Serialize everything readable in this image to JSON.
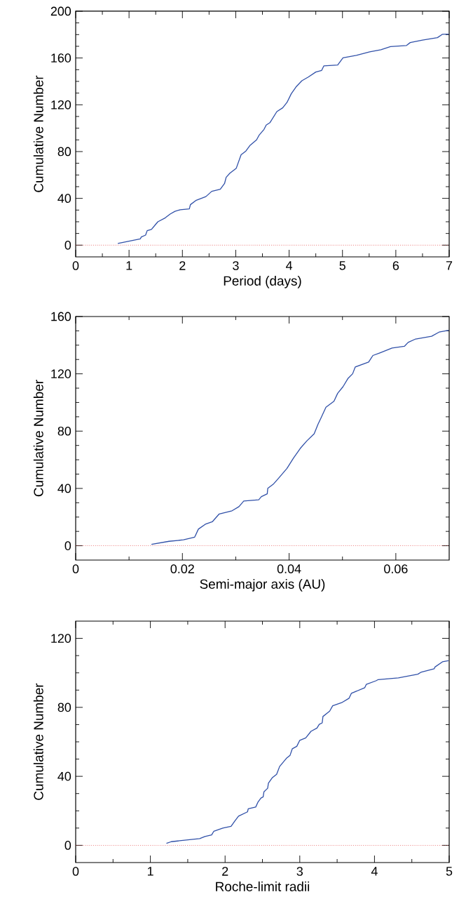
{
  "chart_data": [
    {
      "type": "line",
      "xlabel": "Period (days)",
      "ylabel": "Cumulative Number",
      "xlim": [
        0,
        7
      ],
      "ylim": [
        -10,
        200
      ],
      "xticks": [
        0,
        1,
        2,
        3,
        4,
        5,
        6,
        7
      ],
      "yticks": [
        0,
        40,
        80,
        120,
        160,
        200
      ],
      "series": [
        {
          "color": "#3050a8",
          "x": [
            0.79,
            1.21,
            1.23,
            1.31,
            1.34,
            1.42,
            1.49,
            1.54,
            1.68,
            1.77,
            1.86,
            1.96,
            2.13,
            2.15,
            2.26,
            2.44,
            2.55,
            2.71,
            2.79,
            2.82,
            2.89,
            3.01,
            3.1,
            3.19,
            3.27,
            3.39,
            3.44,
            3.53,
            3.57,
            3.64,
            3.77,
            3.88,
            3.96,
            4.04,
            4.13,
            4.24,
            4.36,
            4.5,
            4.61,
            4.65,
            4.91,
            5.01,
            5.26,
            5.51,
            5.72,
            5.9,
            6.2,
            6.27,
            6.5,
            6.78,
            6.87,
            6.99
          ],
          "values": [
            1.5,
            5.3,
            7,
            8.6,
            12.4,
            13.5,
            17.3,
            20,
            23.4,
            26.6,
            28.9,
            30.3,
            31,
            34.6,
            38.4,
            41.5,
            46,
            47.8,
            52.7,
            58,
            61.5,
            65.8,
            77.3,
            80.5,
            85.4,
            90,
            94.2,
            99,
            102.6,
            104.7,
            114.2,
            117.4,
            122,
            129.4,
            135.3,
            140.6,
            143.7,
            148,
            149.4,
            153.2,
            154,
            160.2,
            162.3,
            165.2,
            167.1,
            169.7,
            170.7,
            173.2,
            175.3,
            177.4,
            180.2,
            180.4
          ]
        }
      ],
      "ref_lines": [
        {
          "axis": "y",
          "value": 0,
          "color": "#e03030",
          "line_style": "dotted"
        }
      ]
    },
    {
      "type": "line",
      "xlabel": "Semi-major axis (AU)",
      "ylabel": "Cumulative Number",
      "xlim": [
        0,
        0.07
      ],
      "ylim": [
        -10,
        160
      ],
      "xticks": [
        0,
        0.02,
        0.04,
        0.06
      ],
      "yticks": [
        0,
        40,
        80,
        120,
        160
      ],
      "series": [
        {
          "color": "#3050a8",
          "x": [
            0.0142,
            0.0175,
            0.0202,
            0.0223,
            0.023,
            0.0243,
            0.0256,
            0.0269,
            0.0293,
            0.0306,
            0.0315,
            0.0343,
            0.0348,
            0.0359,
            0.036,
            0.0371,
            0.038,
            0.0396,
            0.0408,
            0.0421,
            0.0433,
            0.0447,
            0.0454,
            0.0461,
            0.0469,
            0.0484,
            0.0491,
            0.0501,
            0.051,
            0.0519,
            0.0524,
            0.0549,
            0.0557,
            0.057,
            0.0593,
            0.0616,
            0.0623,
            0.0637,
            0.0667,
            0.0681,
            0.0699
          ],
          "values": [
            1,
            3.1,
            4.1,
            6,
            11.6,
            15,
            16.7,
            22.2,
            24.4,
            27.3,
            31.2,
            32.1,
            34.3,
            36.2,
            40.1,
            43.2,
            47,
            54,
            61.1,
            68,
            73.1,
            78.2,
            84.7,
            90.2,
            96.7,
            100.8,
            106.4,
            111,
            116.6,
            120,
            124.8,
            128.2,
            132.8,
            134.6,
            138,
            139.2,
            141.9,
            144.3,
            146.2,
            149.1,
            150.4
          ]
        }
      ],
      "ref_lines": [
        {
          "axis": "y",
          "value": 0,
          "color": "#e03030",
          "line_style": "dotted"
        }
      ]
    },
    {
      "type": "line",
      "xlabel": "Roche-limit radii",
      "ylabel": "Cumulative Number",
      "xlim": [
        0,
        5
      ],
      "ylim": [
        -10,
        130
      ],
      "xticks": [
        0,
        1,
        2,
        3,
        4,
        5
      ],
      "yticks": [
        0,
        40,
        80,
        120
      ],
      "series": [
        {
          "color": "#3050a8",
          "x": [
            1.215,
            1.28,
            1.66,
            1.73,
            1.82,
            1.85,
            1.97,
            2.08,
            2.13,
            2.18,
            2.3,
            2.31,
            2.41,
            2.44,
            2.48,
            2.51,
            2.52,
            2.57,
            2.58,
            2.63,
            2.69,
            2.73,
            2.82,
            2.87,
            2.9,
            2.96,
            3.0,
            3.08,
            3.15,
            3.23,
            3.26,
            3.3,
            3.31,
            3.4,
            3.44,
            3.56,
            3.66,
            3.69,
            3.87,
            3.89,
            4.02,
            4.05,
            4.32,
            4.58,
            4.62,
            4.8,
            4.81,
            4.91,
            4.99
          ],
          "values": [
            1.1,
            2.1,
            3.9,
            5.1,
            6,
            8.2,
            10,
            11,
            14.1,
            16.9,
            19.4,
            21.2,
            22.2,
            25,
            27.4,
            28.1,
            31,
            33.1,
            36,
            39.1,
            41.2,
            45.7,
            50.4,
            52.2,
            56,
            57.4,
            60.9,
            62.3,
            66.1,
            68,
            70.1,
            71,
            74.7,
            77.8,
            80.9,
            82.7,
            85.3,
            88.1,
            91.4,
            93.3,
            95.4,
            96.1,
            97.1,
            99.2,
            100.3,
            102.4,
            103.4,
            106.4,
            107.1
          ]
        }
      ],
      "ref_lines": [
        {
          "axis": "y",
          "value": 0,
          "color": "#e03030",
          "line_style": "dotted"
        }
      ]
    }
  ]
}
